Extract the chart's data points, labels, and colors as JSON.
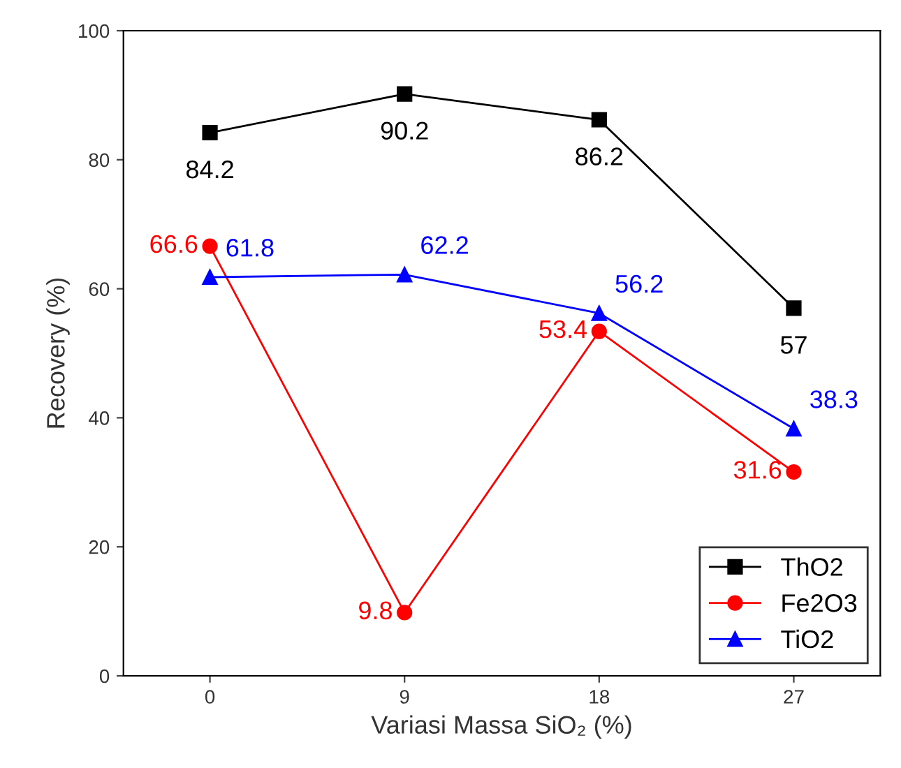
{
  "chart_data": {
    "type": "line",
    "xlabel": "Variasi Massa SiO₂ (%)",
    "ylabel": "Recovery (%)",
    "x": [
      0,
      9,
      18,
      27
    ],
    "xlim": [
      -4,
      31
    ],
    "xticks": [
      0,
      9,
      18,
      27
    ],
    "ylim": [
      0,
      100
    ],
    "yticks": [
      0,
      20,
      40,
      60,
      80,
      100
    ],
    "series": [
      {
        "name": "ThO2",
        "color": "#000000",
        "marker": "square",
        "values": [
          84.2,
          90.2,
          86.2,
          57
        ]
      },
      {
        "name": "Fe2O3",
        "color": "#ff0000",
        "marker": "circle",
        "values": [
          66.6,
          9.8,
          53.4,
          31.6
        ]
      },
      {
        "name": "TiO2",
        "color": "#0000ff",
        "marker": "triangle",
        "values": [
          61.8,
          62.2,
          56.2,
          38.3
        ]
      }
    ],
    "data_labels": true,
    "legend": "bottom right",
    "grid": false
  }
}
